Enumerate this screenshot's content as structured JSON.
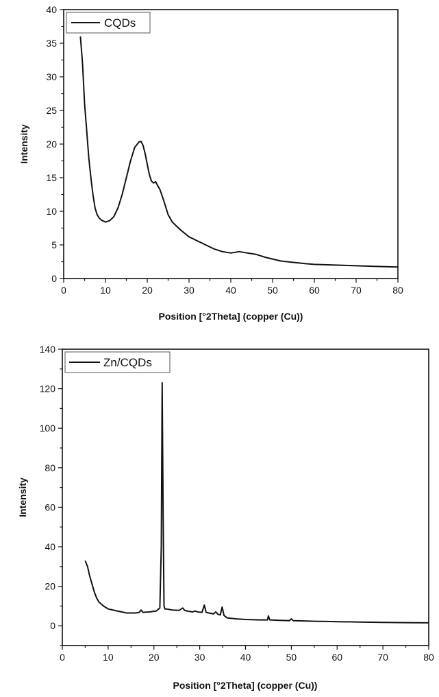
{
  "chart_data": [
    {
      "type": "line",
      "title": "",
      "xlabel": "Position [°2Theta] (copper (Cu))",
      "ylabel": "Intensity",
      "xlim": [
        0,
        80
      ],
      "ylim": [
        0,
        40
      ],
      "xticks": [
        0,
        10,
        20,
        30,
        40,
        50,
        60,
        70,
        80
      ],
      "yticks": [
        0,
        5,
        10,
        15,
        20,
        25,
        30,
        35,
        40
      ],
      "grid": false,
      "legend": {
        "position": "top-left",
        "entries": [
          "CQDs"
        ]
      },
      "series": [
        {
          "name": "CQDs",
          "color": "#111111",
          "x": [
            4,
            4.5,
            5,
            5.5,
            6,
            6.5,
            7,
            7.5,
            8,
            8.5,
            9,
            10,
            11,
            12,
            13,
            14,
            15,
            16,
            17,
            18,
            18.5,
            19,
            19.5,
            20,
            20.5,
            21,
            21.5,
            22,
            22.5,
            23,
            24,
            25,
            26,
            27,
            28,
            30,
            32,
            34,
            36,
            38,
            40,
            42,
            44,
            46,
            48,
            50,
            52,
            55,
            58,
            60,
            65,
            70,
            75,
            80
          ],
          "y": [
            36,
            32,
            26,
            22,
            18,
            15,
            12.5,
            10.5,
            9.5,
            9,
            8.7,
            8.4,
            8.6,
            9.2,
            10.5,
            12.5,
            15,
            17.5,
            19.5,
            20.3,
            20.4,
            19.8,
            18.6,
            17,
            15.5,
            14.5,
            14.2,
            14.4,
            13.8,
            13.3,
            11.5,
            9.5,
            8.4,
            7.8,
            7.2,
            6.2,
            5.6,
            5,
            4.4,
            4,
            3.8,
            4,
            3.8,
            3.6,
            3.2,
            2.9,
            2.6,
            2.4,
            2.2,
            2.1,
            2,
            1.9,
            1.8,
            1.7
          ]
        }
      ]
    },
    {
      "type": "line",
      "title": "",
      "xlabel": "Position [°2Theta] (copper (Cu))",
      "ylabel": "Intensity",
      "xlim": [
        0,
        80
      ],
      "ylim": [
        -10,
        140
      ],
      "xticks": [
        0,
        10,
        20,
        30,
        40,
        50,
        60,
        70,
        80
      ],
      "yticks": [
        0,
        20,
        40,
        60,
        80,
        100,
        120,
        140
      ],
      "grid": false,
      "legend": {
        "position": "top-left",
        "entries": [
          "Zn/CQDs"
        ]
      },
      "series": [
        {
          "name": "Zn/CQDs",
          "color": "#111111",
          "x": [
            5,
            5.5,
            6,
            6.5,
            7,
            7.5,
            8,
            9,
            10,
            12,
            14,
            16,
            16.8,
            17.2,
            17.6,
            19,
            20.5,
            21.3,
            21.6,
            21.8,
            22,
            22.2,
            22.4,
            22.8,
            24,
            25.5,
            26.3,
            26.7,
            27.2,
            28.5,
            29,
            29.5,
            30.5,
            31,
            31.4,
            32,
            33,
            33.5,
            34,
            34.5,
            34.9,
            35.3,
            36,
            38,
            40,
            43,
            44.8,
            45,
            45.3,
            47,
            49.6,
            50,
            50.4,
            52,
            55,
            58,
            60,
            65,
            70,
            75,
            80
          ],
          "y": [
            33,
            30,
            25,
            21,
            17,
            14,
            12,
            10,
            8.5,
            7.5,
            6.5,
            6.5,
            6.8,
            8,
            6.8,
            7,
            7.5,
            9,
            40,
            123,
            60,
            10,
            8.5,
            8.5,
            8,
            7.8,
            9,
            7.8,
            7.5,
            7,
            7.5,
            7,
            6.8,
            10.5,
            6.8,
            6.5,
            6,
            7,
            5.8,
            5.5,
            9.5,
            5.2,
            4,
            3.5,
            3.2,
            3,
            3,
            5,
            3,
            2.8,
            2.6,
            3.5,
            2.6,
            2.5,
            2.3,
            2.2,
            2.1,
            1.9,
            1.7,
            1.6,
            1.5
          ]
        }
      ]
    }
  ]
}
